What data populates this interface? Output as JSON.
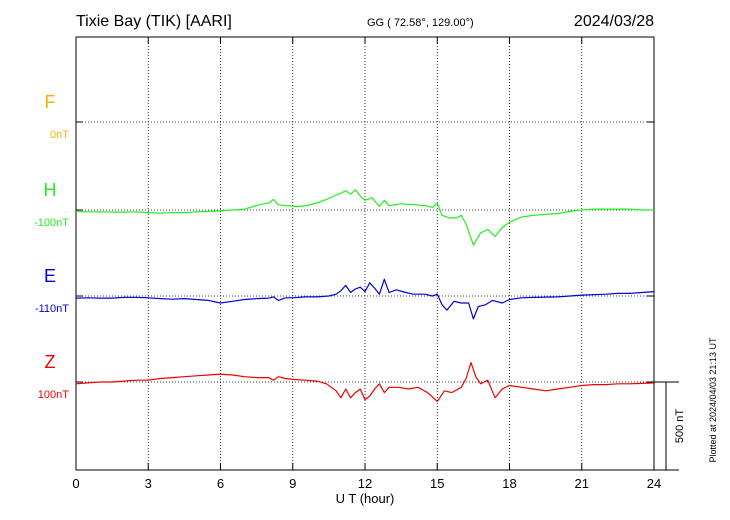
{
  "header": {
    "station": "Tixie Bay (TIK)  [AARI]",
    "coords": "GG ( 72.58°, 129.00°)",
    "date": "2024/03/28"
  },
  "side_note": "Plotted at 2024/04/03 21:13 UT",
  "scale_bar": {
    "label": "500 nT",
    "value_nT": 500
  },
  "chart_data": {
    "type": "line",
    "xlabel": "U T (hour)",
    "xlim": [
      0,
      24
    ],
    "xticks": [
      0,
      3,
      6,
      9,
      12,
      15,
      18,
      21,
      24
    ],
    "grid": "dotted",
    "series": [
      {
        "name": "F",
        "baseline_label": "0nT",
        "color": "#f5b400",
        "points": []
      },
      {
        "name": "H",
        "baseline_label": "-100nT",
        "color": "#22ee22",
        "points": [
          [
            0,
            -8
          ],
          [
            0.5,
            -10
          ],
          [
            1,
            -10
          ],
          [
            1.5,
            -12
          ],
          [
            2,
            -12
          ],
          [
            2.5,
            -10
          ],
          [
            3,
            -15
          ],
          [
            3.5,
            -18
          ],
          [
            4,
            -15
          ],
          [
            4.5,
            -15
          ],
          [
            5,
            -10
          ],
          [
            5.5,
            -8
          ],
          [
            6,
            -5
          ],
          [
            6.5,
            0
          ],
          [
            7,
            5
          ],
          [
            7.5,
            25
          ],
          [
            7.8,
            35
          ],
          [
            8.0,
            40
          ],
          [
            8.2,
            60
          ],
          [
            8.4,
            30
          ],
          [
            8.7,
            25
          ],
          [
            9.2,
            20
          ],
          [
            9.6,
            25
          ],
          [
            10.0,
            40
          ],
          [
            10.4,
            60
          ],
          [
            10.8,
            85
          ],
          [
            11.0,
            95
          ],
          [
            11.2,
            110
          ],
          [
            11.4,
            90
          ],
          [
            11.6,
            115
          ],
          [
            11.8,
            80
          ],
          [
            12.0,
            55
          ],
          [
            12.3,
            70
          ],
          [
            12.6,
            20
          ],
          [
            12.8,
            55
          ],
          [
            13.0,
            25
          ],
          [
            13.5,
            35
          ],
          [
            14.0,
            30
          ],
          [
            14.5,
            25
          ],
          [
            14.8,
            15
          ],
          [
            15.0,
            40
          ],
          [
            15.2,
            -30
          ],
          [
            15.5,
            -45
          ],
          [
            15.8,
            -45
          ],
          [
            16.0,
            -30
          ],
          [
            16.2,
            -80
          ],
          [
            16.5,
            -200
          ],
          [
            16.8,
            -130
          ],
          [
            17.1,
            -110
          ],
          [
            17.4,
            -150
          ],
          [
            17.7,
            -100
          ],
          [
            18.0,
            -70
          ],
          [
            18.5,
            -40
          ],
          [
            19.0,
            -30
          ],
          [
            19.5,
            -25
          ],
          [
            20.0,
            -20
          ],
          [
            20.5,
            -8
          ],
          [
            21.0,
            0
          ],
          [
            21.5,
            5
          ],
          [
            22.0,
            5
          ],
          [
            22.5,
            5
          ],
          [
            23.0,
            5
          ],
          [
            23.5,
            0
          ],
          [
            24.0,
            0
          ]
        ]
      },
      {
        "name": "E",
        "baseline_label": "-110nT",
        "color": "#0000dd",
        "points": [
          [
            0,
            -12
          ],
          [
            0.5,
            -10
          ],
          [
            1,
            -12
          ],
          [
            1.5,
            -12
          ],
          [
            2,
            -8
          ],
          [
            2.5,
            -8
          ],
          [
            3,
            -10
          ],
          [
            3.5,
            -15
          ],
          [
            4,
            -18
          ],
          [
            4.5,
            -15
          ],
          [
            5,
            -20
          ],
          [
            5.5,
            -25
          ],
          [
            6,
            -40
          ],
          [
            6.5,
            -30
          ],
          [
            7,
            -20
          ],
          [
            7.5,
            -15
          ],
          [
            8.0,
            -12
          ],
          [
            8.2,
            -5
          ],
          [
            8.4,
            -25
          ],
          [
            8.7,
            -10
          ],
          [
            9.0,
            -10
          ],
          [
            9.5,
            -5
          ],
          [
            10.0,
            -5
          ],
          [
            10.5,
            0
          ],
          [
            10.8,
            10
          ],
          [
            11.0,
            30
          ],
          [
            11.2,
            60
          ],
          [
            11.4,
            20
          ],
          [
            11.6,
            40
          ],
          [
            11.8,
            50
          ],
          [
            12.0,
            25
          ],
          [
            12.2,
            75
          ],
          [
            12.4,
            45
          ],
          [
            12.6,
            10
          ],
          [
            12.8,
            95
          ],
          [
            13.0,
            20
          ],
          [
            13.3,
            35
          ],
          [
            13.7,
            20
          ],
          [
            14.0,
            10
          ],
          [
            14.5,
            10
          ],
          [
            14.8,
            0
          ],
          [
            15.0,
            10
          ],
          [
            15.2,
            -50
          ],
          [
            15.4,
            -80
          ],
          [
            15.7,
            -30
          ],
          [
            16.0,
            -40
          ],
          [
            16.3,
            -40
          ],
          [
            16.5,
            -130
          ],
          [
            16.7,
            -60
          ],
          [
            17.0,
            -50
          ],
          [
            17.3,
            -25
          ],
          [
            17.7,
            -40
          ],
          [
            18.0,
            -20
          ],
          [
            18.5,
            -10
          ],
          [
            19,
            -8
          ],
          [
            20,
            -5
          ],
          [
            21,
            5
          ],
          [
            22,
            10
          ],
          [
            22.5,
            15
          ],
          [
            23,
            15
          ],
          [
            23.5,
            20
          ],
          [
            24,
            25
          ]
        ]
      },
      {
        "name": "Z",
        "baseline_label": "100nT",
        "color": "#ee0000",
        "points": [
          [
            0,
            -10
          ],
          [
            0.5,
            -5
          ],
          [
            1,
            0
          ],
          [
            1.5,
            0
          ],
          [
            2,
            5
          ],
          [
            2.5,
            10
          ],
          [
            3,
            10
          ],
          [
            3.5,
            20
          ],
          [
            4,
            25
          ],
          [
            4.5,
            30
          ],
          [
            5,
            35
          ],
          [
            5.5,
            40
          ],
          [
            6,
            45
          ],
          [
            6.5,
            40
          ],
          [
            7,
            30
          ],
          [
            7.5,
            25
          ],
          [
            8.0,
            25
          ],
          [
            8.2,
            10
          ],
          [
            8.4,
            30
          ],
          [
            8.7,
            20
          ],
          [
            9.0,
            15
          ],
          [
            9.5,
            10
          ],
          [
            10.0,
            5
          ],
          [
            10.4,
            -10
          ],
          [
            10.8,
            -50
          ],
          [
            11.0,
            -90
          ],
          [
            11.2,
            -40
          ],
          [
            11.4,
            -90
          ],
          [
            11.6,
            -60
          ],
          [
            11.8,
            -40
          ],
          [
            12.0,
            -100
          ],
          [
            12.2,
            -80
          ],
          [
            12.4,
            -40
          ],
          [
            12.6,
            -10
          ],
          [
            12.8,
            -60
          ],
          [
            13.0,
            -30
          ],
          [
            13.4,
            -30
          ],
          [
            13.8,
            -40
          ],
          [
            14.2,
            -30
          ],
          [
            14.6,
            -60
          ],
          [
            15.0,
            -110
          ],
          [
            15.3,
            -50
          ],
          [
            15.6,
            -60
          ],
          [
            16.0,
            -30
          ],
          [
            16.2,
            20
          ],
          [
            16.4,
            110
          ],
          [
            16.6,
            30
          ],
          [
            16.8,
            -10
          ],
          [
            17.1,
            10
          ],
          [
            17.4,
            -90
          ],
          [
            17.7,
            -40
          ],
          [
            18.0,
            -20
          ],
          [
            18.5,
            -30
          ],
          [
            19.0,
            -40
          ],
          [
            19.5,
            -50
          ],
          [
            20.0,
            -40
          ],
          [
            20.5,
            -30
          ],
          [
            21,
            -20
          ],
          [
            21.5,
            -15
          ],
          [
            22,
            -15
          ],
          [
            22.5,
            -10
          ],
          [
            23,
            -10
          ],
          [
            24,
            -5
          ]
        ]
      }
    ]
  }
}
